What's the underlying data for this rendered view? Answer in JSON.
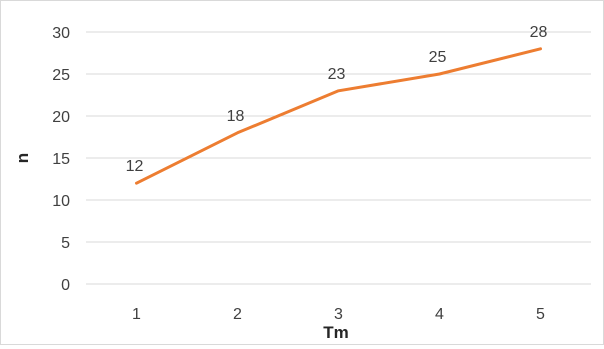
{
  "chart_data": {
    "type": "line",
    "x": [
      1,
      2,
      3,
      4,
      5
    ],
    "series": [
      {
        "values": [
          12,
          18,
          23,
          25,
          28
        ],
        "color": "#ED7D31"
      }
    ],
    "data_labels": [
      "12",
      "18",
      "23",
      "25",
      "28"
    ],
    "xlabel": "Tm",
    "ylabel": "n",
    "ylim": [
      0,
      30
    ],
    "yticks": [
      0,
      5,
      10,
      15,
      20,
      25,
      30
    ],
    "xtick_labels": [
      "1",
      "2",
      "3",
      "4",
      "5"
    ],
    "ytick_labels": [
      "0",
      "5",
      "10",
      "15",
      "20",
      "25",
      "30"
    ],
    "grid": true,
    "gridline_color": "#d9d9d9",
    "legend": "none"
  }
}
